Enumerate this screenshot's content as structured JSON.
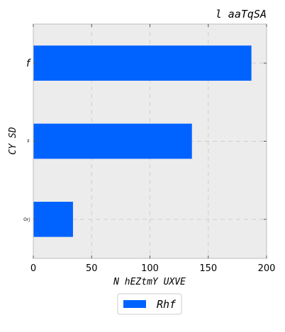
{
  "chart_data": {
    "type": "bar",
    "orientation": "horizontal",
    "title": "l  aaTqSA",
    "xlabel": "N hEZtmY UXVE",
    "ylabel": "CY SD",
    "categories": [
      "f",
      "F",
      "Orj"
    ],
    "series": [
      {
        "name": "Rhf",
        "color": "#0062ff",
        "values": [
          187,
          136,
          34
        ]
      }
    ],
    "xlim": [
      0,
      200
    ],
    "xticks": [
      0,
      50,
      100,
      150,
      200
    ],
    "grid": true,
    "legend_position": "bottom-center",
    "plot_background": "#ececec"
  }
}
